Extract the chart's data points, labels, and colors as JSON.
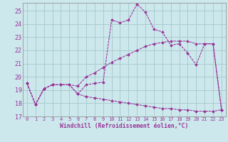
{
  "xlabel": "Windchill (Refroidissement éolien,°C)",
  "background_color": "#cce8ec",
  "grid_color": "#aaccd0",
  "line_color": "#993399",
  "xlim": [
    -0.5,
    23.5
  ],
  "ylim": [
    17,
    25.6
  ],
  "yticks": [
    17,
    18,
    19,
    20,
    21,
    22,
    23,
    24,
    25
  ],
  "xticks": [
    0,
    1,
    2,
    3,
    4,
    5,
    6,
    7,
    8,
    9,
    10,
    11,
    12,
    13,
    14,
    15,
    16,
    17,
    18,
    19,
    20,
    21,
    22,
    23
  ],
  "series": [
    [
      19.5,
      17.9,
      19.1,
      19.4,
      19.4,
      19.4,
      18.7,
      19.4,
      19.5,
      19.6,
      24.3,
      24.1,
      24.3,
      25.5,
      24.9,
      23.6,
      23.4,
      22.4,
      22.5,
      21.8,
      20.9,
      22.5,
      22.5,
      17.5
    ],
    [
      19.5,
      17.9,
      19.1,
      19.4,
      19.4,
      19.4,
      19.3,
      20.0,
      20.3,
      20.7,
      21.1,
      21.4,
      21.7,
      22.0,
      22.3,
      22.5,
      22.6,
      22.7,
      22.7,
      22.7,
      22.5,
      22.5,
      22.5,
      17.5
    ],
    [
      19.5,
      17.9,
      19.1,
      19.4,
      19.4,
      19.4,
      18.7,
      18.5,
      18.4,
      18.3,
      18.2,
      18.1,
      18.0,
      17.9,
      17.8,
      17.7,
      17.6,
      17.6,
      17.5,
      17.5,
      17.4,
      17.4,
      17.4,
      17.5
    ]
  ]
}
